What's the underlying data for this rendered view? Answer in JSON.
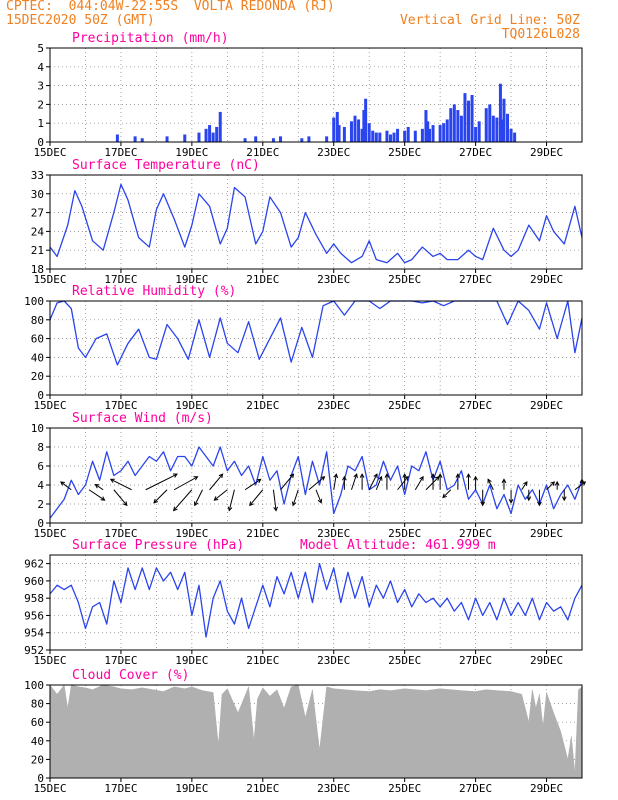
{
  "header": {
    "line1_left": "CPTEC:  044:04W-22:55S  VOLTA REDONDA (RJ)",
    "line2_left": "15DEC2020 50Z (GMT)",
    "line2_right": "Vertical Grid Line: 50Z",
    "line3_right": "TQ0126L028"
  },
  "colors": {
    "title": "#ff00a0",
    "header": "#f08020",
    "line": "#2a44ee",
    "fill": "#b0b0b0",
    "bars": "#2a44ee",
    "arrows": "#000000"
  },
  "x_axis": {
    "range_days": [
      15,
      30
    ],
    "tick_labels": [
      "15DEC",
      "17DEC",
      "19DEC",
      "21DEC",
      "23DEC",
      "25DEC",
      "27DEC",
      "29DEC"
    ],
    "tick_days": [
      15,
      17,
      19,
      21,
      23,
      25,
      27,
      29
    ]
  },
  "chart_data": [
    {
      "type": "bar",
      "title": "Precipitation (mm/h)",
      "ylim": [
        0,
        5
      ],
      "yticks": [
        0,
        1,
        2,
        3,
        4,
        5
      ],
      "x_days": [
        16.9,
        17.4,
        17.6,
        18.3,
        18.8,
        19.2,
        19.4,
        19.5,
        19.6,
        19.7,
        19.8,
        20.5,
        20.8,
        21.3,
        21.5,
        22.1,
        22.3,
        22.8,
        23.0,
        23.1,
        23.15,
        23.3,
        23.5,
        23.6,
        23.7,
        23.8,
        23.85,
        23.9,
        24.0,
        24.1,
        24.2,
        24.3,
        24.5,
        24.6,
        24.7,
        24.8,
        25.0,
        25.1,
        25.3,
        25.5,
        25.6,
        25.65,
        25.7,
        25.8,
        26.0,
        26.1,
        26.2,
        26.3,
        26.4,
        26.5,
        26.6,
        26.7,
        26.8,
        26.9,
        27.0,
        27.1,
        27.3,
        27.4,
        27.5,
        27.6,
        27.7,
        27.75,
        27.8,
        27.9,
        28.0,
        28.1
      ],
      "values": [
        0.4,
        0.3,
        0.2,
        0.3,
        0.4,
        0.5,
        0.7,
        0.9,
        0.5,
        0.8,
        1.6,
        0.2,
        0.3,
        0.2,
        0.3,
        0.2,
        0.3,
        0.3,
        1.3,
        1.6,
        0.9,
        0.8,
        1.1,
        1.4,
        1.2,
        0.7,
        1.7,
        2.3,
        1.0,
        0.6,
        0.5,
        0.5,
        0.6,
        0.4,
        0.5,
        0.7,
        0.6,
        0.8,
        0.6,
        0.7,
        1.7,
        1.1,
        0.7,
        0.9,
        0.9,
        1.0,
        1.2,
        1.8,
        2.0,
        1.7,
        1.4,
        2.6,
        2.2,
        2.5,
        0.8,
        1.1,
        1.8,
        2.0,
        1.4,
        1.3,
        3.1,
        1.2,
        2.3,
        1.5,
        0.7,
        0.5
      ]
    },
    {
      "type": "line",
      "title": "Surface Temperature (nC)",
      "ylim": [
        18,
        33
      ],
      "yticks": [
        18,
        21,
        24,
        27,
        30,
        33
      ],
      "x_days": [
        15.0,
        15.2,
        15.5,
        15.7,
        15.9,
        16.2,
        16.5,
        16.8,
        17.0,
        17.2,
        17.5,
        17.8,
        18.0,
        18.2,
        18.5,
        18.8,
        19.0,
        19.2,
        19.5,
        19.8,
        20.0,
        20.2,
        20.5,
        20.8,
        21.0,
        21.2,
        21.5,
        21.8,
        22.0,
        22.2,
        22.5,
        22.8,
        23.0,
        23.2,
        23.5,
        23.8,
        24.0,
        24.2,
        24.5,
        24.8,
        25.0,
        25.2,
        25.5,
        25.8,
        26.0,
        26.2,
        26.5,
        26.8,
        27.0,
        27.2,
        27.5,
        27.8,
        28.0,
        28.2,
        28.5,
        28.8,
        29.0,
        29.2,
        29.5,
        29.8,
        30.0
      ],
      "values": [
        21.5,
        20.0,
        25.0,
        30.5,
        28.0,
        22.5,
        21.0,
        27.0,
        31.5,
        29.0,
        23.0,
        21.5,
        27.5,
        30.0,
        26.0,
        21.5,
        25.0,
        30.0,
        28.0,
        22.0,
        24.5,
        31.0,
        29.5,
        22.0,
        24.0,
        29.5,
        27.0,
        21.5,
        23.0,
        27.0,
        23.5,
        20.5,
        22.0,
        20.5,
        19.0,
        20.0,
        22.5,
        19.5,
        19.0,
        20.5,
        19.0,
        19.5,
        21.5,
        20.0,
        20.5,
        19.5,
        19.5,
        21.0,
        20.0,
        19.5,
        24.5,
        21.0,
        20.0,
        21.0,
        25.0,
        22.5,
        26.5,
        24.0,
        22.0,
        28.0,
        23.0
      ]
    },
    {
      "type": "line",
      "title": "Relative Humidity (%)",
      "ylim": [
        0,
        100
      ],
      "yticks": [
        0,
        20,
        40,
        60,
        80,
        100
      ],
      "x_days": [
        15.0,
        15.2,
        15.4,
        15.6,
        15.8,
        16.0,
        16.3,
        16.6,
        16.9,
        17.2,
        17.5,
        17.8,
        18.0,
        18.3,
        18.6,
        18.9,
        19.2,
        19.5,
        19.8,
        20.0,
        20.3,
        20.6,
        20.9,
        21.2,
        21.5,
        21.8,
        22.1,
        22.4,
        22.7,
        23.0,
        23.3,
        23.6,
        24.0,
        24.3,
        24.6,
        24.9,
        25.2,
        25.5,
        25.8,
        26.1,
        26.4,
        26.7,
        27.0,
        27.3,
        27.6,
        27.9,
        28.2,
        28.5,
        28.8,
        29.0,
        29.3,
        29.6,
        29.8,
        30.0
      ],
      "values": [
        80,
        98,
        100,
        92,
        50,
        40,
        60,
        65,
        32,
        55,
        70,
        40,
        38,
        75,
        60,
        38,
        80,
        40,
        82,
        55,
        45,
        78,
        38,
        60,
        82,
        35,
        72,
        40,
        95,
        100,
        85,
        100,
        100,
        92,
        100,
        100,
        100,
        98,
        100,
        95,
        100,
        100,
        100,
        100,
        100,
        75,
        100,
        90,
        70,
        98,
        60,
        100,
        45,
        82
      ]
    },
    {
      "type": "line",
      "title": "Surface Wind (m/s)",
      "ylim": [
        0,
        10
      ],
      "yticks": [
        0,
        2,
        4,
        6,
        8,
        10
      ],
      "x_days": [
        15.0,
        15.2,
        15.4,
        15.6,
        15.8,
        16.0,
        16.2,
        16.4,
        16.6,
        16.8,
        17.0,
        17.2,
        17.4,
        17.6,
        17.8,
        18.0,
        18.2,
        18.4,
        18.6,
        18.8,
        19.0,
        19.2,
        19.4,
        19.6,
        19.8,
        20.0,
        20.2,
        20.4,
        20.6,
        20.8,
        21.0,
        21.2,
        21.4,
        21.6,
        21.8,
        22.0,
        22.2,
        22.4,
        22.6,
        22.8,
        23.0,
        23.2,
        23.4,
        23.6,
        23.8,
        24.0,
        24.2,
        24.4,
        24.6,
        24.8,
        25.0,
        25.2,
        25.4,
        25.6,
        25.8,
        26.0,
        26.2,
        26.4,
        26.6,
        26.8,
        27.0,
        27.2,
        27.4,
        27.6,
        27.8,
        28.0,
        28.2,
        28.4,
        28.6,
        28.8,
        29.0,
        29.2,
        29.4,
        29.6,
        29.8,
        30.0
      ],
      "values": [
        0.5,
        1.5,
        2.5,
        4.5,
        3.0,
        4.0,
        6.5,
        4.5,
        7.5,
        5.0,
        5.5,
        6.5,
        5.0,
        6.0,
        7.0,
        6.5,
        7.5,
        5.5,
        7.0,
        7.0,
        6.0,
        8.0,
        7.0,
        6.0,
        8.0,
        5.5,
        6.5,
        5.0,
        6.0,
        4.0,
        7.0,
        4.5,
        5.5,
        2.0,
        5.0,
        7.0,
        3.0,
        6.5,
        4.0,
        7.5,
        1.0,
        3.0,
        6.0,
        5.5,
        7.0,
        3.5,
        4.0,
        6.5,
        4.5,
        6.0,
        3.0,
        6.0,
        5.5,
        7.5,
        4.5,
        6.5,
        3.5,
        4.0,
        5.5,
        2.5,
        3.5,
        2.0,
        4.0,
        1.5,
        3.0,
        1.0,
        4.0,
        2.5,
        3.5,
        2.0,
        4.0,
        1.5,
        3.0,
        4.0,
        2.5,
        4.5
      ]
    },
    {
      "type": "line",
      "title": "Surface Pressure (hPa)",
      "subtitle": "Model Altitude: 461.999 m",
      "ylim": [
        952,
        963
      ],
      "yticks": [
        952,
        954,
        956,
        958,
        960,
        962
      ],
      "x_days": [
        15.0,
        15.2,
        15.4,
        15.6,
        15.8,
        16.0,
        16.2,
        16.4,
        16.6,
        16.8,
        17.0,
        17.2,
        17.4,
        17.6,
        17.8,
        18.0,
        18.2,
        18.4,
        18.6,
        18.8,
        19.0,
        19.2,
        19.4,
        19.6,
        19.8,
        20.0,
        20.2,
        20.4,
        20.6,
        20.8,
        21.0,
        21.2,
        21.4,
        21.6,
        21.8,
        22.0,
        22.2,
        22.4,
        22.6,
        22.8,
        23.0,
        23.2,
        23.4,
        23.6,
        23.8,
        24.0,
        24.2,
        24.4,
        24.6,
        24.8,
        25.0,
        25.2,
        25.4,
        25.6,
        25.8,
        26.0,
        26.2,
        26.4,
        26.6,
        26.8,
        27.0,
        27.2,
        27.4,
        27.6,
        27.8,
        28.0,
        28.2,
        28.4,
        28.6,
        28.8,
        29.0,
        29.2,
        29.4,
        29.6,
        29.8,
        30.0
      ],
      "values": [
        958.5,
        959.5,
        959.0,
        959.5,
        957.5,
        954.5,
        957.0,
        957.5,
        955.0,
        960.0,
        957.5,
        961.5,
        959.0,
        961.5,
        959.0,
        961.5,
        960.0,
        961.0,
        959.0,
        961.0,
        956.0,
        959.5,
        953.5,
        958.0,
        960.0,
        956.5,
        955.0,
        958.0,
        954.5,
        957.0,
        959.5,
        957.0,
        960.5,
        958.5,
        961.0,
        958.0,
        961.0,
        957.5,
        962.0,
        959.0,
        961.5,
        957.5,
        961.0,
        958.0,
        960.5,
        957.0,
        959.5,
        958.0,
        960.0,
        957.5,
        959.0,
        957.0,
        958.5,
        957.5,
        958.0,
        957.0,
        958.0,
        956.5,
        957.5,
        955.5,
        958.0,
        956.0,
        957.5,
        955.5,
        958.0,
        956.0,
        957.5,
        956.0,
        958.0,
        955.5,
        957.5,
        956.5,
        957.0,
        955.5,
        958.0,
        959.5
      ]
    },
    {
      "type": "area",
      "title": "Cloud Cover (%)",
      "ylim": [
        0,
        100
      ],
      "yticks": [
        0,
        20,
        40,
        60,
        80,
        100
      ],
      "x_days": [
        15.0,
        15.2,
        15.4,
        15.5,
        15.6,
        15.8,
        16.0,
        16.2,
        16.5,
        16.8,
        17.0,
        17.3,
        17.6,
        17.9,
        18.2,
        18.5,
        18.8,
        19.0,
        19.3,
        19.6,
        19.75,
        19.85,
        20.0,
        20.3,
        20.6,
        20.75,
        20.85,
        21.0,
        21.2,
        21.4,
        21.6,
        21.8,
        22.0,
        22.2,
        22.4,
        22.6,
        22.8,
        23.0,
        23.3,
        23.6,
        24.0,
        24.3,
        24.6,
        25.0,
        25.3,
        25.6,
        26.0,
        26.3,
        26.6,
        27.0,
        27.3,
        27.6,
        28.0,
        28.3,
        28.5,
        28.6,
        28.7,
        28.8,
        28.9,
        29.0,
        29.2,
        29.4,
        29.6,
        29.7,
        29.8,
        29.9,
        30.0
      ],
      "values": [
        100,
        90,
        100,
        75,
        100,
        98,
        97,
        95,
        100,
        98,
        96,
        95,
        97,
        95,
        93,
        98,
        96,
        98,
        94,
        92,
        35,
        90,
        96,
        70,
        98,
        40,
        85,
        97,
        88,
        95,
        75,
        98,
        100,
        65,
        95,
        30,
        98,
        96,
        95,
        94,
        93,
        95,
        94,
        96,
        95,
        94,
        96,
        95,
        94,
        93,
        95,
        94,
        93,
        90,
        60,
        95,
        75,
        90,
        55,
        92,
        70,
        50,
        20,
        45,
        5,
        95,
        98
      ]
    }
  ],
  "wind_vectors": {
    "x_days": [
      15.6,
      16.1,
      16.5,
      16.8,
      17.3,
      17.7,
      18.3,
      18.5,
      19.0,
      19.3,
      19.5,
      20.0,
      20.2,
      20.5,
      21.0,
      21.3,
      21.5,
      22.0,
      22.3,
      22.5,
      23.0,
      23.3,
      23.5,
      23.8,
      24.0,
      24.2,
      24.5,
      24.8,
      25.0,
      25.3,
      25.6,
      25.8,
      26.0,
      26.3,
      26.5,
      26.8,
      27.0,
      27.2,
      27.5,
      27.8,
      28.0,
      28.3,
      28.5,
      28.8,
      29.0,
      29.3,
      29.5,
      29.8,
      30.0
    ],
    "u": [
      -0.4,
      0.6,
      -0.3,
      0.5,
      -0.8,
      1.2,
      -0.5,
      0.9,
      -0.7,
      -0.3,
      0.5,
      -0.5,
      -0.2,
      0.6,
      -0.5,
      0.1,
      0.5,
      -0.2,
      0.6,
      0.2,
      0.1,
      0.0,
      0.2,
      0.0,
      0.3,
      0.2,
      0.0,
      0.4,
      0.0,
      0.3,
      0.5,
      0.0,
      0.0,
      -0.3,
      0.0,
      0.0,
      0.0,
      0.0,
      -0.2,
      0.0,
      0.0,
      0.2,
      0.0,
      0.0,
      0.3,
      0.0,
      0.0,
      0.4,
      0.0
    ],
    "v": [
      0.3,
      -0.4,
      0.2,
      -0.6,
      0.4,
      0.6,
      -0.5,
      0.5,
      -0.8,
      -0.6,
      0.6,
      -0.4,
      -0.8,
      0.4,
      -0.6,
      -0.8,
      0.6,
      -0.6,
      0.5,
      -0.5,
      0.6,
      0.5,
      0.6,
      0.6,
      0.6,
      0.5,
      0.6,
      0.5,
      0.6,
      0.5,
      0.5,
      0.6,
      0.6,
      -0.3,
      0.6,
      0.6,
      0.5,
      -0.6,
      0.4,
      0.4,
      -0.5,
      0.3,
      -0.4,
      -0.6,
      0.3,
      0.3,
      -0.4,
      0.3,
      0.4
    ]
  }
}
